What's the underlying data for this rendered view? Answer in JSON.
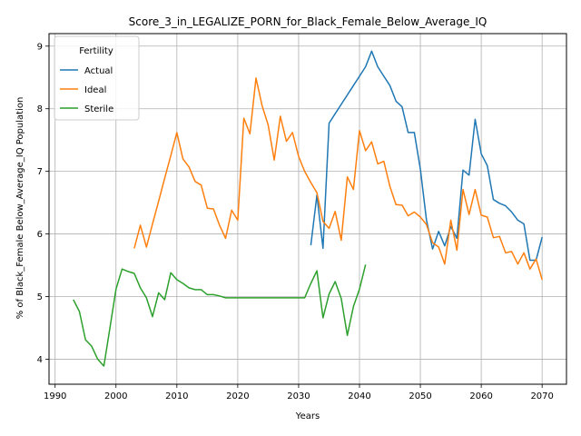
{
  "chart_data": {
    "type": "line",
    "title": "Score_3_in_LEGALIZE_PORN_for_Black_Female_Below_Average_IQ",
    "xlabel": "Years",
    "ylabel": "% of Black_Female Below_Average_IQ Population",
    "xlim": [
      1989,
      2074
    ],
    "ylim": [
      3.6,
      9.2
    ],
    "x_ticks": [
      1990,
      2000,
      2010,
      2020,
      2030,
      2040,
      2050,
      2060,
      2070
    ],
    "y_ticks": [
      4,
      5,
      6,
      7,
      8,
      9
    ],
    "grid": true,
    "legend": {
      "title": "Fertility",
      "placement": "top-left"
    },
    "series": [
      {
        "name": "Actual",
        "color": "#1f77b4",
        "points": [
          [
            2032,
            5.82
          ],
          [
            2033,
            6.62
          ],
          [
            2034,
            5.77
          ],
          [
            2035,
            7.77
          ],
          [
            2036,
            7.92
          ],
          [
            2037,
            8.07
          ],
          [
            2038,
            8.22
          ],
          [
            2039,
            8.37
          ],
          [
            2040,
            8.52
          ],
          [
            2041,
            8.67
          ],
          [
            2042,
            8.92
          ],
          [
            2043,
            8.67
          ],
          [
            2044,
            8.52
          ],
          [
            2045,
            8.37
          ],
          [
            2046,
            8.12
          ],
          [
            2047,
            8.03
          ],
          [
            2048,
            7.62
          ],
          [
            2049,
            7.62
          ],
          [
            2050,
            7.03
          ],
          [
            2051,
            6.22
          ],
          [
            2052,
            5.76
          ],
          [
            2053,
            6.04
          ],
          [
            2054,
            5.81
          ],
          [
            2055,
            6.12
          ],
          [
            2056,
            5.93
          ],
          [
            2057,
            7.02
          ],
          [
            2058,
            6.94
          ],
          [
            2059,
            7.83
          ],
          [
            2060,
            7.28
          ],
          [
            2061,
            7.09
          ],
          [
            2062,
            6.55
          ],
          [
            2063,
            6.49
          ],
          [
            2064,
            6.45
          ],
          [
            2065,
            6.35
          ],
          [
            2066,
            6.22
          ],
          [
            2067,
            6.16
          ],
          [
            2068,
            5.58
          ],
          [
            2069,
            5.58
          ],
          [
            2070,
            5.95
          ]
        ]
      },
      {
        "name": "Ideal",
        "color": "#ff7f0e",
        "points": [
          [
            2003,
            5.77
          ],
          [
            2004,
            6.14
          ],
          [
            2005,
            5.79
          ],
          [
            2006,
            6.16
          ],
          [
            2007,
            6.52
          ],
          [
            2008,
            6.89
          ],
          [
            2009,
            7.25
          ],
          [
            2010,
            7.62
          ],
          [
            2011,
            7.2
          ],
          [
            2012,
            7.07
          ],
          [
            2013,
            6.84
          ],
          [
            2014,
            6.78
          ],
          [
            2015,
            6.41
          ],
          [
            2016,
            6.4
          ],
          [
            2017,
            6.14
          ],
          [
            2018,
            5.93
          ],
          [
            2019,
            6.38
          ],
          [
            2020,
            6.22
          ],
          [
            2021,
            7.85
          ],
          [
            2022,
            7.6
          ],
          [
            2023,
            8.49
          ],
          [
            2024,
            8.05
          ],
          [
            2025,
            7.74
          ],
          [
            2026,
            7.18
          ],
          [
            2027,
            7.88
          ],
          [
            2028,
            7.48
          ],
          [
            2029,
            7.62
          ],
          [
            2030,
            7.24
          ],
          [
            2031,
            7.0
          ],
          [
            2032,
            6.82
          ],
          [
            2033,
            6.66
          ],
          [
            2034,
            6.2
          ],
          [
            2035,
            6.09
          ],
          [
            2036,
            6.36
          ],
          [
            2037,
            5.9
          ],
          [
            2038,
            6.91
          ],
          [
            2039,
            6.71
          ],
          [
            2040,
            7.65
          ],
          [
            2041,
            7.33
          ],
          [
            2042,
            7.47
          ],
          [
            2043,
            7.12
          ],
          [
            2044,
            7.16
          ],
          [
            2045,
            6.76
          ],
          [
            2046,
            6.47
          ],
          [
            2047,
            6.46
          ],
          [
            2048,
            6.29
          ],
          [
            2049,
            6.35
          ],
          [
            2050,
            6.27
          ],
          [
            2051,
            6.15
          ],
          [
            2052,
            5.86
          ],
          [
            2053,
            5.79
          ],
          [
            2054,
            5.52
          ],
          [
            2055,
            6.22
          ],
          [
            2056,
            5.74
          ],
          [
            2057,
            6.71
          ],
          [
            2058,
            6.31
          ],
          [
            2059,
            6.71
          ],
          [
            2060,
            6.3
          ],
          [
            2061,
            6.27
          ],
          [
            2062,
            5.94
          ],
          [
            2063,
            5.96
          ],
          [
            2064,
            5.7
          ],
          [
            2065,
            5.72
          ],
          [
            2066,
            5.52
          ],
          [
            2067,
            5.7
          ],
          [
            2068,
            5.44
          ],
          [
            2069,
            5.6
          ],
          [
            2070,
            5.27
          ]
        ]
      },
      {
        "name": "Sterile",
        "color": "#2ca02c",
        "points": [
          [
            1993,
            4.95
          ],
          [
            1994,
            4.76
          ],
          [
            1995,
            4.31
          ],
          [
            1996,
            4.21
          ],
          [
            1997,
            4.0
          ],
          [
            1998,
            3.89
          ],
          [
            1999,
            4.5
          ],
          [
            2000,
            5.12
          ],
          [
            2001,
            5.44
          ],
          [
            2002,
            5.4
          ],
          [
            2003,
            5.37
          ],
          [
            2004,
            5.14
          ],
          [
            2005,
            4.98
          ],
          [
            2006,
            4.68
          ],
          [
            2007,
            5.06
          ],
          [
            2008,
            4.95
          ],
          [
            2009,
            5.38
          ],
          [
            2010,
            5.27
          ],
          [
            2011,
            5.21
          ],
          [
            2012,
            5.14
          ],
          [
            2013,
            5.11
          ],
          [
            2014,
            5.11
          ],
          [
            2015,
            5.03
          ],
          [
            2016,
            5.03
          ],
          [
            2017,
            5.01
          ],
          [
            2018,
            4.98
          ],
          [
            2019,
            4.98
          ],
          [
            2020,
            4.98
          ],
          [
            2021,
            4.98
          ],
          [
            2022,
            4.98
          ],
          [
            2023,
            4.98
          ],
          [
            2024,
            4.98
          ],
          [
            2025,
            4.98
          ],
          [
            2026,
            4.98
          ],
          [
            2027,
            4.98
          ],
          [
            2028,
            4.98
          ],
          [
            2029,
            4.98
          ],
          [
            2030,
            4.98
          ],
          [
            2031,
            4.98
          ],
          [
            2032,
            5.21
          ],
          [
            2033,
            5.41
          ],
          [
            2034,
            4.66
          ],
          [
            2035,
            5.04
          ],
          [
            2036,
            5.24
          ],
          [
            2037,
            4.97
          ],
          [
            2038,
            4.38
          ],
          [
            2039,
            4.84
          ],
          [
            2040,
            5.12
          ],
          [
            2041,
            5.51
          ]
        ]
      }
    ]
  }
}
